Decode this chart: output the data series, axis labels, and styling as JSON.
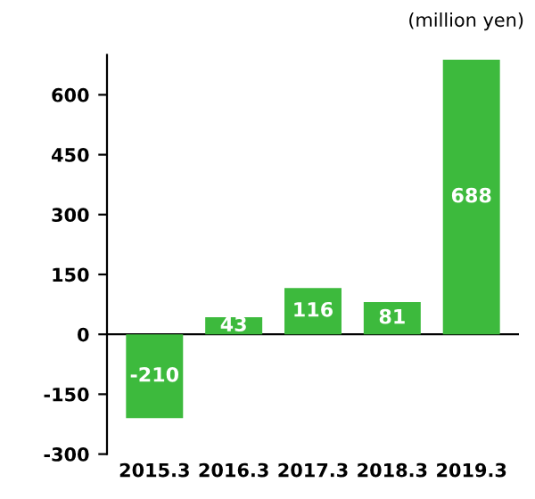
{
  "chart_data": {
    "type": "bar",
    "categories": [
      "2015.3",
      "2016.3",
      "2017.3",
      "2018.3",
      "2019.3"
    ],
    "values": [
      -210,
      43,
      116,
      81,
      688
    ],
    "color": "#3dba3d",
    "ylim": [
      -300,
      700
    ],
    "yticks": [
      -300,
      -150,
      0,
      150,
      300,
      450,
      600
    ],
    "ref_lines": [
      {
        "axis": "y",
        "value": 0,
        "color": "#000000"
      }
    ],
    "data_labels": true,
    "annotations": [
      "(million yen)"
    ]
  }
}
